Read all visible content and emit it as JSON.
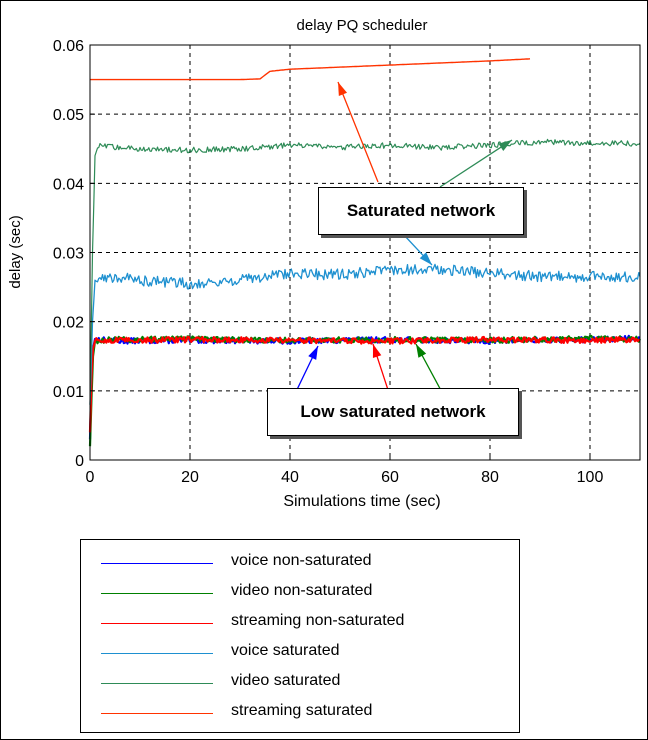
{
  "chart_data": {
    "type": "line",
    "title": "delay PQ scheduler",
    "xlabel": "Simulations time (sec)",
    "ylabel": "delay (sec)",
    "xlim": [
      0,
      110
    ],
    "ylim": [
      0,
      0.06
    ],
    "xticks": [
      0,
      20,
      40,
      60,
      80,
      100
    ],
    "yticks": [
      0,
      0.01,
      0.02,
      0.03,
      0.04,
      0.05,
      0.06
    ],
    "xtick_labels": [
      "0",
      "20",
      "40",
      "60",
      "80",
      "100"
    ],
    "ytick_labels": [
      "0",
      "0.01",
      "0.02",
      "0.03",
      "0.04",
      "0.05",
      "0.06"
    ],
    "grid": true,
    "legend_position": "below-plot",
    "series": [
      {
        "name": "voice non-saturated",
        "color": "#0000ff",
        "x": [
          0,
          0.3,
          0.6,
          1,
          5,
          20,
          40,
          60,
          80,
          100,
          110
        ],
        "y": [
          0.003,
          0.011,
          0.016,
          0.0175,
          0.0172,
          0.0173,
          0.0172,
          0.0174,
          0.0172,
          0.0174,
          0.0177
        ]
      },
      {
        "name": "video non-saturated",
        "color": "#008000",
        "x": [
          0,
          0.3,
          0.6,
          1,
          5,
          20,
          40,
          60,
          80,
          100,
          110
        ],
        "y": [
          0.002,
          0.009,
          0.015,
          0.0172,
          0.0174,
          0.0175,
          0.0173,
          0.0174,
          0.0173,
          0.0176,
          0.0175
        ]
      },
      {
        "name": "streaming non-saturated",
        "color": "#ff0000",
        "x": [
          0,
          0.3,
          0.6,
          1,
          5,
          20,
          40,
          60,
          80,
          100,
          110
        ],
        "y": [
          0.004,
          0.012,
          0.016,
          0.0172,
          0.0173,
          0.0174,
          0.0173,
          0.0172,
          0.0174,
          0.0173,
          0.0174
        ]
      },
      {
        "name": "voice saturated",
        "color": "#1e90d0",
        "x": [
          0,
          0.5,
          1,
          5,
          10,
          20,
          30,
          40,
          50,
          60,
          70,
          80,
          90,
          100,
          110
        ],
        "y": [
          0.008,
          0.02,
          0.026,
          0.0265,
          0.026,
          0.0255,
          0.026,
          0.027,
          0.0268,
          0.0275,
          0.0275,
          0.027,
          0.0265,
          0.0265,
          0.0265
        ]
      },
      {
        "name": "video saturated",
        "color": "#2e8b57",
        "x": [
          0,
          0.5,
          1,
          2,
          5,
          10,
          20,
          30,
          40,
          50,
          60,
          70,
          80,
          90,
          100,
          110
        ],
        "y": [
          0.008,
          0.03,
          0.044,
          0.0455,
          0.0452,
          0.045,
          0.0448,
          0.045,
          0.0455,
          0.0452,
          0.0455,
          0.0452,
          0.0455,
          0.046,
          0.0458,
          0.0458
        ]
      },
      {
        "name": "streaming saturated",
        "color": "#ff3300",
        "x": [
          0,
          30,
          34,
          36,
          40,
          50,
          60,
          70,
          80,
          88
        ],
        "y": [
          0.055,
          0.055,
          0.0551,
          0.0562,
          0.0565,
          0.0568,
          0.0571,
          0.0574,
          0.0577,
          0.058
        ]
      }
    ],
    "annotations": [
      {
        "text": "Saturated network"
      },
      {
        "text": "Low saturated network"
      }
    ]
  }
}
